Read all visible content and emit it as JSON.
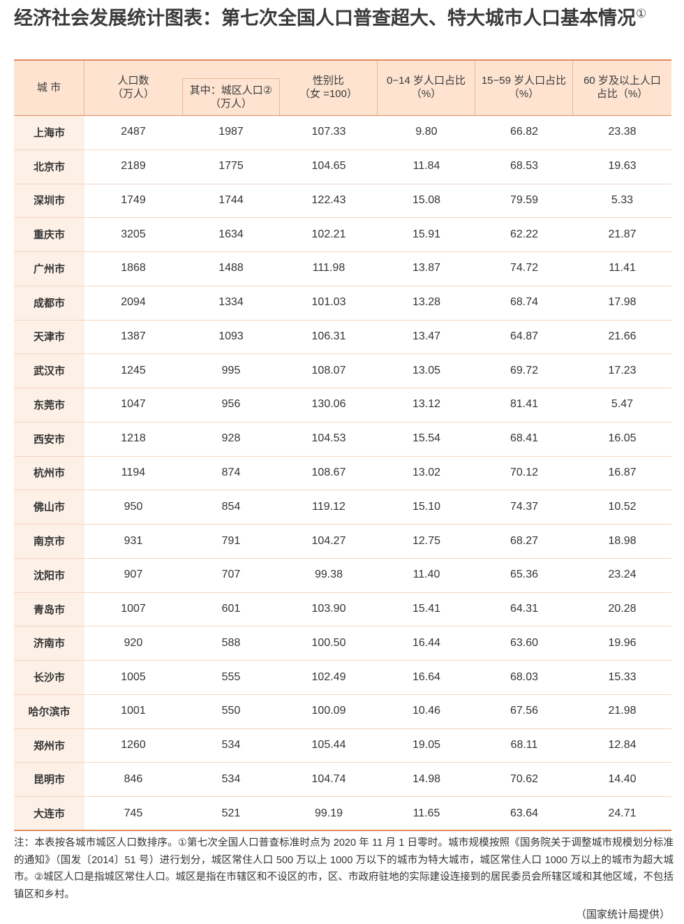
{
  "header": {
    "title": "经济社会发展统计图表：第七次全国人口普查超大、特大城市人口基本情况",
    "title_mark": "①"
  },
  "table": {
    "columns": [
      [
        "城 市"
      ],
      [
        "人口数",
        "（万人）"
      ],
      [
        "其中：城区人口②",
        "（万人）"
      ],
      [
        "性别比",
        "（女 =100）"
      ],
      [
        "0−14 岁人口占比",
        "（%）"
      ],
      [
        "15−59 岁人口占比",
        "（%）"
      ],
      [
        "60 岁及以上人口",
        "占比（%）"
      ]
    ],
    "rows": [
      [
        "上海市",
        "2487",
        "1987",
        "107.33",
        "9.80",
        "66.82",
        "23.38"
      ],
      [
        "北京市",
        "2189",
        "1775",
        "104.65",
        "11.84",
        "68.53",
        "19.63"
      ],
      [
        "深圳市",
        "1749",
        "1744",
        "122.43",
        "15.08",
        "79.59",
        "5.33"
      ],
      [
        "重庆市",
        "3205",
        "1634",
        "102.21",
        "15.91",
        "62.22",
        "21.87"
      ],
      [
        "广州市",
        "1868",
        "1488",
        "111.98",
        "13.87",
        "74.72",
        "11.41"
      ],
      [
        "成都市",
        "2094",
        "1334",
        "101.03",
        "13.28",
        "68.74",
        "17.98"
      ],
      [
        "天津市",
        "1387",
        "1093",
        "106.31",
        "13.47",
        "64.87",
        "21.66"
      ],
      [
        "武汉市",
        "1245",
        "995",
        "108.07",
        "13.05",
        "69.72",
        "17.23"
      ],
      [
        "东莞市",
        "1047",
        "956",
        "130.06",
        "13.12",
        "81.41",
        "5.47"
      ],
      [
        "西安市",
        "1218",
        "928",
        "104.53",
        "15.54",
        "68.41",
        "16.05"
      ],
      [
        "杭州市",
        "1194",
        "874",
        "108.67",
        "13.02",
        "70.12",
        "16.87"
      ],
      [
        "佛山市",
        "950",
        "854",
        "119.12",
        "15.10",
        "74.37",
        "10.52"
      ],
      [
        "南京市",
        "931",
        "791",
        "104.27",
        "12.75",
        "68.27",
        "18.98"
      ],
      [
        "沈阳市",
        "907",
        "707",
        "99.38",
        "11.40",
        "65.36",
        "23.24"
      ],
      [
        "青岛市",
        "1007",
        "601",
        "103.90",
        "15.41",
        "64.31",
        "20.28"
      ],
      [
        "济南市",
        "920",
        "588",
        "100.50",
        "16.44",
        "63.60",
        "19.96"
      ],
      [
        "长沙市",
        "1005",
        "555",
        "102.49",
        "16.64",
        "68.03",
        "15.33"
      ],
      [
        "哈尔滨市",
        "1001",
        "550",
        "100.09",
        "10.46",
        "67.56",
        "21.98"
      ],
      [
        "郑州市",
        "1260",
        "534",
        "105.44",
        "19.05",
        "68.11",
        "12.84"
      ],
      [
        "昆明市",
        "846",
        "534",
        "104.74",
        "14.98",
        "70.62",
        "14.40"
      ],
      [
        "大连市",
        "745",
        "521",
        "99.19",
        "11.65",
        "63.64",
        "24.71"
      ]
    ]
  },
  "notes": {
    "text": "注：本表按各城市城区人口数排序。①第七次全国人口普查标准时点为 2020 年 11 月 1 日零时。城市规模按照《国务院关于调整城市规模划分标准的通知》（国发〔2014〕51 号）进行划分，城区常住人口 500 万以上 1000 万以下的城市为特大城市，城区常住人口 1000 万以上的城市为超大城市。②城区人口是指城区常住人口。城区是指在市辖区和不设区的市，区、市政府驻地的实际建设连接到的居民委员会所辖区域和其他区域，不包括镇区和乡村。",
    "source": "（国家统计局提供）"
  }
}
